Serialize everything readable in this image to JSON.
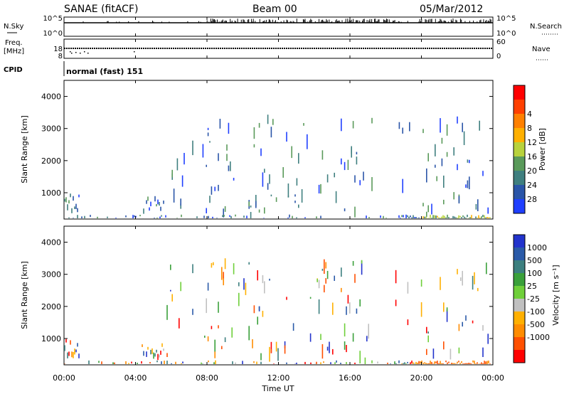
{
  "header": {
    "title": "SANAE (fitACF)",
    "beam": "Beam 00",
    "date": "05/Mar/2012"
  },
  "top_panels": {
    "nsky_label": "N.Sky",
    "nsky_ticks": [
      "10^5",
      "10^0"
    ],
    "nsearch_label": "N.Search",
    "freq_label": "Freq.",
    "freq_unit": "[MHz]",
    "freq_ticks": [
      "18",
      "8"
    ],
    "nave_ticks": [
      "60",
      "0"
    ],
    "nave_label": "Nave",
    "cpid_label": "CPID",
    "cpid_value": "normal (fast) 151"
  },
  "chart_data": [
    {
      "type": "heatmap",
      "panel": "power",
      "ylabel": "Slant Range [km]",
      "yticks": [
        "1000",
        "2000",
        "3000",
        "4000"
      ],
      "ylim": [
        180,
        4500
      ],
      "colorbar_label": "Power [dB]",
      "colorbar_ticks": [
        "4",
        "8",
        "12",
        "16",
        "20",
        "24",
        "28"
      ],
      "colorbar_colors": [
        "#1f3fff",
        "#2a55a8",
        "#3f7f7f",
        "#5a9a5a",
        "#b8d23c",
        "#ffb000",
        "#ff8000",
        "#ff4000",
        "#ff0000"
      ],
      "grid": false
    },
    {
      "type": "heatmap",
      "panel": "velocity",
      "ylabel": "Slant Range [km]",
      "yticks": [
        "1000",
        "2000",
        "3000",
        "4000"
      ],
      "ylim": [
        180,
        4500
      ],
      "colorbar_label": "Velocity [m s⁻¹]",
      "colorbar_ticks": [
        "1000",
        "500",
        "100",
        "25",
        "-25",
        "-100",
        "-500",
        "-1000"
      ],
      "colorbar_colors": [
        "#2233cc",
        "#2a5aa8",
        "#3c7f7f",
        "#3aa03a",
        "#6fcf3a",
        "#c0c0c0",
        "#ffb000",
        "#ff8c00",
        "#ff5000",
        "#ff0000"
      ],
      "grid": false
    }
  ],
  "xaxis": {
    "ticks": [
      "00:00",
      "04:00",
      "08:00",
      "12:00",
      "16:00",
      "20:00",
      "00:00"
    ],
    "label": "Time UT"
  }
}
